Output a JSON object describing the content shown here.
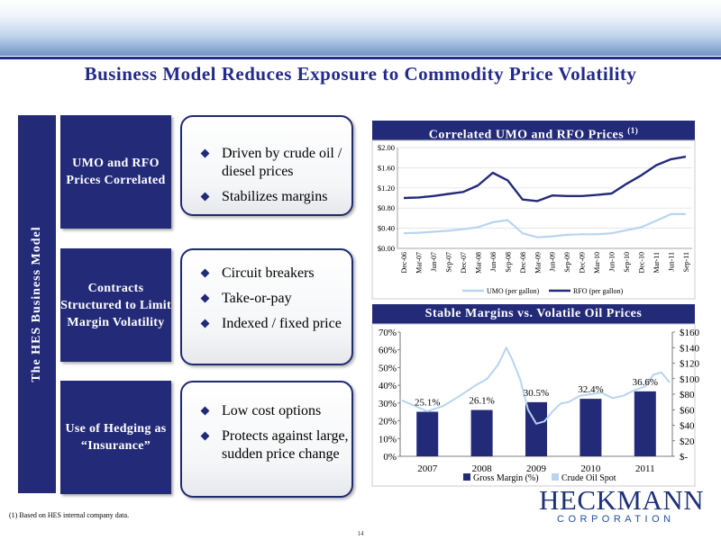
{
  "slide": {
    "title": "Business Model Reduces Exposure to Commodity Price Volatility",
    "side_label": "The HES Business Model",
    "sections": [
      {
        "label": "UMO and RFO Prices Correlated",
        "bullets": [
          "Driven by crude oil / diesel prices",
          "Stabilizes margins"
        ]
      },
      {
        "label": "Contracts Structured to Limit Margin Volatility",
        "bullets": [
          "Circuit breakers",
          "Take-or-pay",
          "Indexed / fixed price"
        ]
      },
      {
        "label": "Use of Hedging as “Insurance”",
        "bullets": [
          "Low cost options",
          "Protects against large, sudden price change"
        ]
      }
    ],
    "footnote": "(1)    Based on HES internal company data.",
    "page_number": "14",
    "logo": {
      "name": "HECKMANN",
      "sub": "CORPORATION"
    }
  },
  "colors": {
    "navy": "#232a78",
    "light_blue": "#b8d4f0",
    "accent": "#1f3178"
  },
  "chart_data": [
    {
      "type": "line",
      "title": "Correlated UMO and RFO Prices",
      "title_note": "(1)",
      "x": [
        "Dec-06",
        "Mar-07",
        "Jun-07",
        "Sep-07",
        "Dec-07",
        "Mar-08",
        "Jun-08",
        "Sep-08",
        "Dec-08",
        "Mar-09",
        "Jun-09",
        "Sep-09",
        "Dec-09",
        "Mar-10",
        "Jun-10",
        "Sep-10",
        "Dec-10",
        "Mar-11",
        "Jun-11",
        "Sep-11"
      ],
      "ylim": [
        0,
        2.0
      ],
      "yticks": [
        "$0.00",
        "$0.40",
        "$0.80",
        "$1.20",
        "$1.60",
        "$2.00"
      ],
      "series": [
        {
          "name": "UMO (per gallon)",
          "color": "#b8d4f0",
          "values": [
            0.3,
            0.31,
            0.33,
            0.35,
            0.38,
            0.42,
            0.52,
            0.56,
            0.3,
            0.22,
            0.24,
            0.27,
            0.28,
            0.28,
            0.3,
            0.36,
            0.42,
            0.55,
            0.68,
            0.68
          ]
        },
        {
          "name": "RFO (per gallon)",
          "color": "#232a78",
          "values": [
            1.0,
            1.01,
            1.04,
            1.08,
            1.12,
            1.25,
            1.5,
            1.35,
            0.97,
            0.94,
            1.05,
            1.04,
            1.04,
            1.06,
            1.09,
            1.28,
            1.45,
            1.65,
            1.77,
            1.82
          ]
        }
      ],
      "legend": "bottom"
    },
    {
      "type": "bar",
      "title": "Stable Margins vs. Volatile Oil Prices",
      "categories": [
        "2007",
        "2008",
        "2009",
        "2010",
        "2011"
      ],
      "ylim": [
        0,
        70
      ],
      "yticks": [
        "0%",
        "10%",
        "20%",
        "30%",
        "40%",
        "50%",
        "60%",
        "70%"
      ],
      "y2lim": [
        0,
        160
      ],
      "y2ticks": [
        "$-",
        "$20",
        "$40",
        "$60",
        "$80",
        "$100",
        "$120",
        "$140",
        "$160"
      ],
      "series": [
        {
          "name": "Gross Margin (%)",
          "color": "#232a78",
          "values": [
            25.1,
            26.1,
            30.5,
            32.4,
            36.6
          ],
          "labels": [
            "25.1%",
            "26.1%",
            "30.5%",
            "32.4%",
            "36.6%"
          ]
        },
        {
          "name": "Crude Oil Spot",
          "color": "#b8d4f0",
          "type": "line",
          "axis": "right",
          "x": [
            2006.5,
            2007.0,
            2007.3,
            2007.6,
            2007.9,
            2008.1,
            2008.3,
            2008.45,
            2008.55,
            2008.7,
            2008.85,
            2009.0,
            2009.15,
            2009.3,
            2009.45,
            2009.6,
            2009.8,
            2010.0,
            2010.2,
            2010.4,
            2010.6,
            2010.8,
            2011.0,
            2011.15,
            2011.3,
            2011.45
          ],
          "values": [
            72,
            58,
            65,
            78,
            92,
            100,
            118,
            140,
            126,
            100,
            60,
            42,
            45,
            58,
            68,
            70,
            78,
            80,
            82,
            75,
            78,
            85,
            90,
            105,
            108,
            95
          ]
        }
      ],
      "legend": "bottom"
    }
  ]
}
